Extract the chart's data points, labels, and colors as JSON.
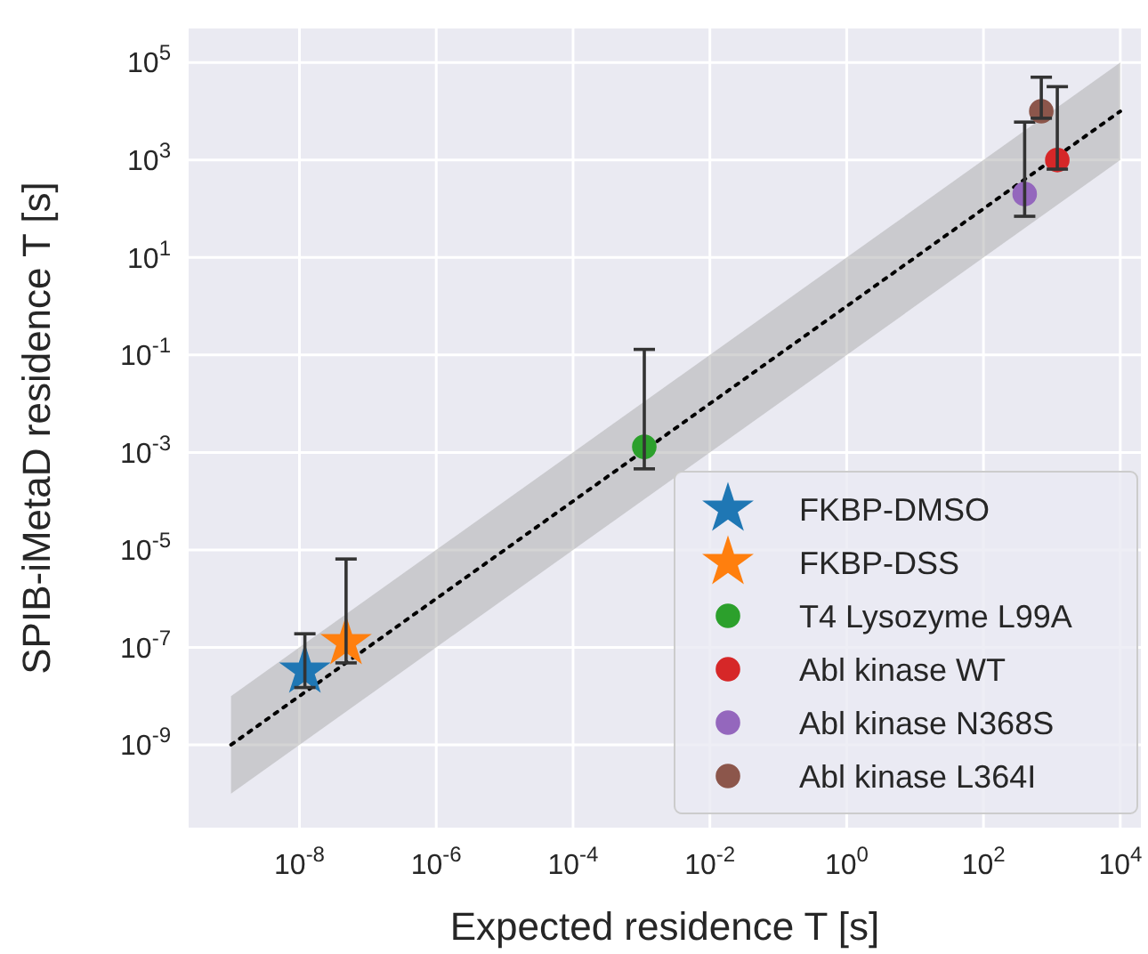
{
  "chart_data": {
    "type": "scatter",
    "xlabel": "Expected residence T [s]",
    "ylabel": "SPIB-iMetaD residence T [s]",
    "log": "xy",
    "grid": true,
    "legend": "bottom right",
    "xlim": [
      2.4e-10,
      20000.0
    ],
    "ylim": [
      2e-11,
      500000.0
    ],
    "xticks": [
      {
        "value": 1e-08,
        "label": "10$^{-8}$"
      },
      {
        "value": 1e-06,
        "label": "10$^{-6}$"
      },
      {
        "value": 0.0001,
        "label": "10$^{-4}$"
      },
      {
        "value": 0.01,
        "label": "10$^{-2}$"
      },
      {
        "value": 1,
        "label": "10$^{0}$"
      },
      {
        "value": 100,
        "label": "10$^{2}$"
      },
      {
        "value": 10000.0,
        "label": "10$^{4}$"
      }
    ],
    "yticks": [
      {
        "value": 1e-09,
        "label": "10$^{-9}$"
      },
      {
        "value": 1e-07,
        "label": "10$^{-7}$"
      },
      {
        "value": 1e-05,
        "label": "10$^{-5}$"
      },
      {
        "value": 0.001,
        "label": "10$^{-3}$"
      },
      {
        "value": 0.1,
        "label": "10$^{-1}$"
      },
      {
        "value": 10,
        "label": "10$^{1}$"
      },
      {
        "value": 1000,
        "label": "10$^{3}$"
      },
      {
        "value": 100000.0,
        "label": "10$^{5}$"
      }
    ],
    "series": [
      {
        "type": "line",
        "x": [
          1e-09,
          10000.0
        ],
        "values": [
          1e-09,
          10000.0
        ],
        "lower": [
          1e-10,
          1000.0
        ],
        "upper": [
          1e-08,
          100000.0
        ],
        "color": "#000000",
        "line_style": "dotted",
        "marker": "none"
      },
      {
        "name": "FKBP-DMSO",
        "color": "#1f77b4",
        "marker": "star",
        "x": [
          1.2e-08
        ],
        "values": [
          3.3e-08
        ],
        "errors": [
          [
            1.5e-08,
            1.9e-07
          ]
        ]
      },
      {
        "name": "FKBP-DSS",
        "color": "#ff7f0e",
        "marker": "star",
        "x": [
          4.8e-08
        ],
        "values": [
          1.26e-07
        ],
        "errors": [
          [
            4.8e-08,
            6.5e-06
          ]
        ]
      },
      {
        "name": "T4 Lysozyme L99A",
        "color": "#2ca02c",
        "marker": "circle",
        "x": [
          0.0011
        ],
        "values": [
          0.0013
        ],
        "errors": [
          [
            0.00046,
            0.13
          ]
        ]
      },
      {
        "name": "Abl kinase WT",
        "color": "#d62728",
        "marker": "circle",
        "x": [
          1200
        ],
        "values": [
          1000
        ],
        "errors": [
          [
            650,
            32000
          ]
        ]
      },
      {
        "name": "Abl kinase N368S",
        "color": "#9467bd",
        "marker": "circle",
        "x": [
          400
        ],
        "values": [
          200
        ],
        "errors": [
          [
            70,
            6000
          ]
        ]
      },
      {
        "name": "Abl kinase L364I",
        "color": "#8c564b",
        "marker": "circle",
        "x": [
          700
        ],
        "values": [
          10000
        ],
        "errors": [
          [
            7200,
            50000
          ]
        ]
      }
    ]
  }
}
